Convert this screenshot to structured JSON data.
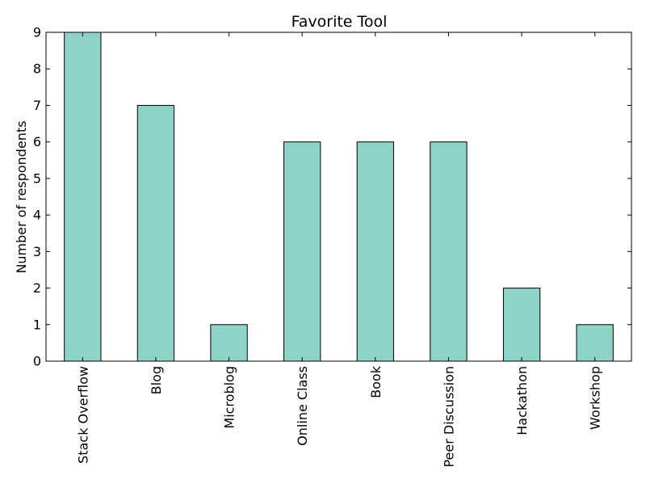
{
  "chart_data": {
    "type": "bar",
    "title": "Favorite Tool",
    "xlabel": "",
    "ylabel": "Number of respondents",
    "categories": [
      "Stack Overflow",
      "Blog",
      "Microblog",
      "Online Class",
      "Book",
      "Peer Discussion",
      "Hackathon",
      "Workshop"
    ],
    "values": [
      9,
      7,
      1,
      6,
      6,
      6,
      2,
      1
    ],
    "ylim": [
      0,
      9
    ],
    "yticks": [
      0,
      1,
      2,
      3,
      4,
      5,
      6,
      7,
      8,
      9
    ],
    "grid": false,
    "legend": "none",
    "colors": {
      "bar_fill": "#8dd3c7",
      "bar_edge": "#000000",
      "axes": "#000000",
      "background": "#ffffff"
    }
  }
}
